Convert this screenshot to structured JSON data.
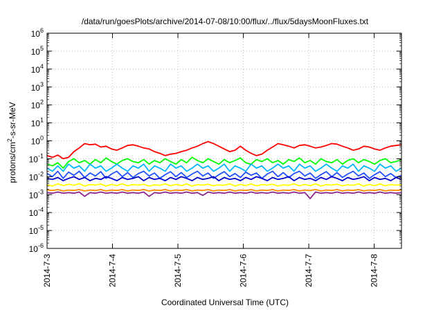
{
  "chart_data": {
    "type": "line",
    "title": "/data/run/goesPlots/archive/2014-07-08/10:00/flux/../flux/5daysMoonFluxes.txt",
    "xlabel": "Coordinated Universal Time (UTC)",
    "ylabel": {
      "prefix": "protons/cm",
      "sup": "2",
      "suffix": "-s-sr-MeV"
    },
    "x_type": "time",
    "xlim": [
      "2014-07-03T00:00",
      "2014-07-08T10:00"
    ],
    "x_ticks": [
      "2014-7-3",
      "2014-7-4",
      "2014-7-5",
      "2014-7-6",
      "2014-7-7",
      "2014-7-8"
    ],
    "y_scale": "log",
    "ylim": [
      1e-06,
      1000000.0
    ],
    "y_ticks": [
      {
        "base": "10",
        "exp": "-6"
      },
      {
        "base": "10",
        "exp": "-5"
      },
      {
        "base": "10",
        "exp": "-4"
      },
      {
        "base": "10",
        "exp": "-3"
      },
      {
        "base": "10",
        "exp": "-2"
      },
      {
        "base": "10",
        "exp": "-1"
      },
      {
        "base": "10",
        "exp": "0"
      },
      {
        "base": "10",
        "exp": "1"
      },
      {
        "base": "10",
        "exp": "2"
      },
      {
        "base": "10",
        "exp": "3"
      },
      {
        "base": "10",
        "exp": "4"
      },
      {
        "base": "10",
        "exp": "5"
      },
      {
        "base": "10",
        "exp": "6"
      }
    ],
    "grid": true,
    "series": [
      {
        "color": "#ff0000",
        "values": [
          0.15,
          0.12,
          0.16,
          0.1,
          0.12,
          0.25,
          0.4,
          0.7,
          0.6,
          0.65,
          0.45,
          0.5,
          0.35,
          0.3,
          0.4,
          0.55,
          0.6,
          0.5,
          0.4,
          0.35,
          0.25,
          0.2,
          0.15,
          0.18,
          0.2,
          0.25,
          0.3,
          0.4,
          0.5,
          0.7,
          0.9,
          0.7,
          0.5,
          0.35,
          0.25,
          0.3,
          0.5,
          0.3,
          0.2,
          0.15,
          0.18,
          0.3,
          0.45,
          0.7,
          0.6,
          0.5,
          0.4,
          0.55,
          0.6,
          0.5,
          0.4,
          0.45,
          0.55,
          0.7,
          0.65,
          0.5,
          0.4,
          0.3,
          0.35,
          0.5,
          0.45,
          0.35,
          0.3,
          0.4,
          0.5,
          0.55,
          0.6
        ]
      },
      {
        "color": "#00ff00",
        "values": [
          0.05,
          0.04,
          0.06,
          0.03,
          0.07,
          0.1,
          0.06,
          0.08,
          0.05,
          0.09,
          0.06,
          0.11,
          0.07,
          0.05,
          0.08,
          0.1,
          0.07,
          0.06,
          0.09,
          0.05,
          0.08,
          0.06,
          0.1,
          0.07,
          0.05,
          0.09,
          0.06,
          0.12,
          0.08,
          0.06,
          0.1,
          0.07,
          0.05,
          0.09,
          0.06,
          0.08,
          0.11,
          0.06,
          0.05,
          0.09,
          0.07,
          0.1,
          0.06,
          0.08,
          0.05,
          0.09,
          0.07,
          0.11,
          0.06,
          0.08,
          0.05,
          0.1,
          0.07,
          0.06,
          0.09,
          0.05,
          0.08,
          0.1,
          0.06,
          0.09,
          0.07,
          0.05,
          0.08,
          0.1,
          0.06,
          0.07,
          0.09
        ]
      },
      {
        "color": "#00b4ff",
        "values": [
          0.03,
          0.02,
          0.04,
          0.02,
          0.05,
          0.03,
          0.04,
          0.02,
          0.05,
          0.03,
          0.04,
          0.02,
          0.03,
          0.05,
          0.03,
          0.02,
          0.04,
          0.03,
          0.05,
          0.02,
          0.04,
          0.03,
          0.02,
          0.05,
          0.03,
          0.04,
          0.02,
          0.03,
          0.05,
          0.03,
          0.04,
          0.02,
          0.03,
          0.05,
          0.02,
          0.04,
          0.03,
          0.02,
          0.05,
          0.03,
          0.04,
          0.02,
          0.03,
          0.05,
          0.03,
          0.04,
          0.02,
          0.05,
          0.03,
          0.04,
          0.02,
          0.03,
          0.05,
          0.03,
          0.02,
          0.04,
          0.03,
          0.05,
          0.02,
          0.04,
          0.03,
          0.02,
          0.05,
          0.03,
          0.04,
          0.02,
          0.03
        ]
      },
      {
        "color": "#1e50ff",
        "values": [
          0.015,
          0.01,
          0.02,
          0.008,
          0.018,
          0.012,
          0.02,
          0.009,
          0.016,
          0.011,
          0.019,
          0.008,
          0.014,
          0.02,
          0.01,
          0.017,
          0.009,
          0.015,
          0.02,
          0.011,
          0.016,
          0.008,
          0.013,
          0.019,
          0.01,
          0.017,
          0.009,
          0.014,
          0.02,
          0.011,
          0.016,
          0.008,
          0.013,
          0.019,
          0.01,
          0.015,
          0.009,
          0.018,
          0.012,
          0.016,
          0.008,
          0.014,
          0.02,
          0.01,
          0.017,
          0.009,
          0.015,
          0.02,
          0.011,
          0.016,
          0.008,
          0.013,
          0.019,
          0.01,
          0.017,
          0.009,
          0.014,
          0.02,
          0.011,
          0.016,
          0.008,
          0.013,
          0.019,
          0.01,
          0.015,
          0.009,
          0.012
        ]
      },
      {
        "color": "#0000c8",
        "values": [
          0.008,
          0.007,
          0.009,
          0.006,
          0.008,
          0.01,
          0.007,
          0.009,
          0.006,
          0.008,
          0.007,
          0.01,
          0.008,
          0.006,
          0.009,
          0.007,
          0.008,
          0.01,
          0.006,
          0.009,
          0.007,
          0.008,
          0.006,
          0.009,
          0.007,
          0.01,
          0.008,
          0.006,
          0.009,
          0.007,
          0.008,
          0.01,
          0.006,
          0.009,
          0.007,
          0.008,
          0.006,
          0.009,
          0.007,
          0.01,
          0.008,
          0.006,
          0.009,
          0.007,
          0.008,
          0.01,
          0.006,
          0.009,
          0.007,
          0.008,
          0.006,
          0.009,
          0.007,
          0.01,
          0.008,
          0.006,
          0.009,
          0.007,
          0.008,
          0.01,
          0.006,
          0.009,
          0.007,
          0.008,
          0.006,
          0.009,
          0.007
        ]
      },
      {
        "color": "#ffff00",
        "values": [
          0.0035,
          0.003,
          0.004,
          0.0032,
          0.0038,
          0.0033,
          0.0041,
          0.003,
          0.0036,
          0.0034,
          0.0039,
          0.003,
          0.0037,
          0.0032,
          0.004,
          0.0031,
          0.0036,
          0.0034,
          0.0038,
          0.003,
          0.0035,
          0.0033,
          0.004,
          0.0031,
          0.0037,
          0.0032,
          0.0039,
          0.003,
          0.0036,
          0.0034,
          0.0038,
          0.0031,
          0.0035,
          0.0033,
          0.004,
          0.003,
          0.0037,
          0.0032,
          0.0039,
          0.0031,
          0.0036,
          0.0034,
          0.0038,
          0.003,
          0.0035,
          0.0033,
          0.004,
          0.0031,
          0.0037,
          0.0032,
          0.0039,
          0.003,
          0.0036,
          0.0034,
          0.0038,
          0.0031,
          0.0035,
          0.0033,
          0.004,
          0.003,
          0.0037,
          0.0032,
          0.0039,
          0.0031,
          0.0036,
          0.0034,
          0.0035
        ]
      },
      {
        "color": "#ff8c00",
        "values": [
          0.0018,
          0.0017,
          0.0019,
          0.0016,
          0.0018,
          0.0017,
          0.0019,
          0.0016,
          0.0018,
          0.0017,
          0.0019,
          0.0016,
          0.0018,
          0.0017,
          0.0019,
          0.0016,
          0.0018,
          0.0017,
          0.0019,
          0.0016,
          0.0018,
          0.0017,
          0.0019,
          0.0016,
          0.0018,
          0.0017,
          0.0019,
          0.0016,
          0.0018,
          0.0017,
          0.0019,
          0.0016,
          0.0018,
          0.0017,
          0.0019,
          0.0016,
          0.0018,
          0.0017,
          0.0019,
          0.0016,
          0.0018,
          0.0017,
          0.0019,
          0.0016,
          0.0018,
          0.0017,
          0.0019,
          0.0016,
          0.0018,
          0.0017,
          0.0019,
          0.0016,
          0.0018,
          0.0017,
          0.0019,
          0.0016,
          0.0018,
          0.0017,
          0.0019,
          0.0016,
          0.0018,
          0.0017,
          0.0019,
          0.0016,
          0.0018,
          0.0017,
          0.0018
        ]
      },
      {
        "color": "#8c288c",
        "values": [
          0.0013,
          0.0012,
          0.0014,
          0.0012,
          0.0013,
          0.0012,
          0.0014,
          0.0008,
          0.0013,
          0.0012,
          0.0014,
          0.0012,
          0.0013,
          0.0012,
          0.0014,
          0.0012,
          0.0013,
          0.0012,
          0.0014,
          0.0008,
          0.0013,
          0.0012,
          0.0014,
          0.0012,
          0.0013,
          0.0012,
          0.0014,
          0.0012,
          0.0013,
          0.0009,
          0.0014,
          0.0012,
          0.0013,
          0.0012,
          0.0014,
          0.0012,
          0.0013,
          0.0012,
          0.0014,
          0.0012,
          0.0013,
          0.0012,
          0.0014,
          0.0012,
          0.0013,
          0.0012,
          0.0014,
          0.0012,
          0.0013,
          0.0006,
          0.0014,
          0.0012,
          0.0013,
          0.0012,
          0.0014,
          0.0012,
          0.0013,
          0.0012,
          0.0014,
          0.0012,
          0.0013,
          0.0012,
          0.0014,
          0.0012,
          0.0013,
          0.0012,
          0.0013
        ]
      }
    ]
  }
}
